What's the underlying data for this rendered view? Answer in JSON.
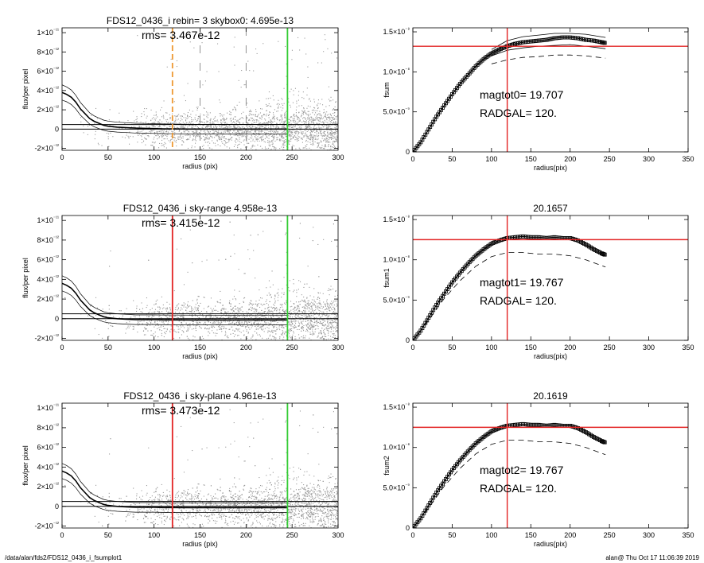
{
  "footer": {
    "path": "/data/alan/fds2/FDS12_0436_i_fsumplot1",
    "user_date": "alan@  Thu Oct 17 11:06:39 2019"
  },
  "colors": {
    "red": "#e32424",
    "green": "#33cc33",
    "orange": "#ee9933",
    "scatter": "#9a9a9a",
    "profile": "#000000"
  },
  "chart_data": [
    {
      "type": "scatter",
      "id": "profile-0",
      "title": "FDS12_0436_i rebin= 3    skybox0:  4.695e-13",
      "annotations": [
        "rms= 3.467e-12"
      ],
      "xlabel": "radius (pix)",
      "ylabel": "flux/per pixel",
      "xlim": [
        0,
        300
      ],
      "ylim": [
        -2.2e-12,
        1.05e-11
      ],
      "xticks": [
        "0",
        "50",
        "100",
        "150",
        "200",
        "250",
        "300"
      ],
      "yticks": [
        "-2×10⁻¹²",
        "0",
        "2×10⁻¹²",
        "4×10⁻¹²",
        "6×10⁻¹²",
        "8×10⁻¹²",
        "1×10⁻¹¹"
      ],
      "ytick_values": [
        -2e-12,
        0,
        2e-12,
        4e-12,
        6e-12,
        8e-12,
        1e-11
      ],
      "sky_level": 4.695e-13,
      "vlines": [
        {
          "x": 120,
          "style": "dashed",
          "color": "orange"
        },
        {
          "x": 150,
          "style": "dashed",
          "color": "gray"
        },
        {
          "x": 200,
          "style": "dashed",
          "color": "gray"
        },
        {
          "x": 245,
          "style": "solid",
          "color": "green"
        }
      ],
      "profile": {
        "x": [
          0,
          5,
          10,
          15,
          20,
          25,
          30,
          35,
          40,
          45,
          50,
          60,
          70,
          80,
          90,
          100,
          110,
          120,
          140,
          160,
          180,
          200,
          220,
          245
        ],
        "y": [
          3.8e-12,
          3.6e-12,
          3.3e-12,
          2.8e-12,
          2.1e-12,
          1.6e-12,
          1.1e-12,
          8e-13,
          6e-13,
          4e-13,
          3e-13,
          2e-13,
          1.5e-13,
          1e-13,
          8e-14,
          5e-14,
          3e-14,
          2e-14,
          0,
          0,
          -1e-14,
          0,
          0,
          0
        ]
      },
      "scatter_note": "individual pixel fluxes, dense gray cloud"
    },
    {
      "type": "line",
      "id": "fsum-0",
      "title": "",
      "annotations": [
        "magtot0=  19.707",
        "RADGAL=    120."
      ],
      "xlabel": "radius(pix)",
      "ylabel": "fsum",
      "xlim": [
        0,
        350
      ],
      "ylim": [
        0,
        1.55e-08
      ],
      "xticks": [
        "0",
        "50",
        "100",
        "150",
        "200",
        "250",
        "300",
        "350"
      ],
      "yticks": [
        "0",
        "5.0×10⁻⁹",
        "1.0×10⁻⁸",
        "1.5×10⁻⁸"
      ],
      "ytick_values": [
        0,
        5e-09,
        1e-08,
        1.5e-08
      ],
      "hline": 1.32e-08,
      "vline": 120,
      "series": [
        {
          "style": "markers",
          "x": [
            0,
            10,
            20,
            30,
            40,
            50,
            60,
            70,
            80,
            90,
            100,
            110,
            120,
            130,
            140,
            150,
            160,
            170,
            180,
            190,
            200,
            210,
            220,
            230,
            240,
            245
          ],
          "y": [
            0,
            1.2e-09,
            2.8e-09,
            4.4e-09,
            5.8e-09,
            7.2e-09,
            8.5e-09,
            9.6e-09,
            1.07e-08,
            1.16e-08,
            1.23e-08,
            1.28e-08,
            1.32e-08,
            1.35e-08,
            1.37e-08,
            1.38e-08,
            1.39e-08,
            1.4e-08,
            1.42e-08,
            1.43e-08,
            1.43e-08,
            1.42e-08,
            1.4e-08,
            1.39e-08,
            1.37e-08,
            1.36e-08
          ]
        },
        {
          "style": "thin",
          "x": [
            100,
            120,
            140,
            160,
            180,
            200,
            220,
            245
          ],
          "y": [
            1.28e-08,
            1.39e-08,
            1.44e-08,
            1.46e-08,
            1.48e-08,
            1.48e-08,
            1.47e-08,
            1.43e-08
          ]
        },
        {
          "style": "thin",
          "x": [
            100,
            120,
            140,
            160,
            180,
            200,
            220,
            245
          ],
          "y": [
            1.2e-08,
            1.27e-08,
            1.3e-08,
            1.32e-08,
            1.33e-08,
            1.34e-08,
            1.32e-08,
            1.29e-08
          ]
        },
        {
          "style": "dashed",
          "x": [
            100,
            120,
            140,
            160,
            180,
            200,
            220,
            245
          ],
          "y": [
            1.1e-08,
            1.15e-08,
            1.18e-08,
            1.19e-08,
            1.21e-08,
            1.21e-08,
            1.2e-08,
            1.17e-08
          ]
        }
      ]
    },
    {
      "type": "scatter",
      "id": "profile-1",
      "title": "FDS12_0436_i sky-range  4.958e-13",
      "annotations": [
        "rms= 3.415e-12"
      ],
      "xlabel": "radius (pix)",
      "ylabel": "flux/per pixel",
      "xlim": [
        0,
        300
      ],
      "ylim": [
        -2.2e-12,
        1.05e-11
      ],
      "xticks": [
        "0",
        "50",
        "100",
        "150",
        "200",
        "250",
        "300"
      ],
      "yticks": [
        "-2×10⁻¹²",
        "0",
        "2×10⁻¹²",
        "4×10⁻¹²",
        "6×10⁻¹²",
        "8×10⁻¹²",
        "1×10⁻¹¹"
      ],
      "ytick_values": [
        -2e-12,
        0,
        2e-12,
        4e-12,
        6e-12,
        8e-12,
        1e-11
      ],
      "sky_level": 4.958e-13,
      "vlines": [
        {
          "x": 120,
          "style": "solid",
          "color": "red"
        },
        {
          "x": 245,
          "style": "solid",
          "color": "green"
        }
      ],
      "profile": {
        "x": [
          0,
          5,
          10,
          15,
          20,
          25,
          30,
          35,
          40,
          45,
          50,
          60,
          70,
          80,
          90,
          100,
          110,
          120,
          140,
          160,
          180,
          200,
          220,
          245
        ],
        "y": [
          3.6e-12,
          3.4e-12,
          3.1e-12,
          2.6e-12,
          1.9e-12,
          1.4e-12,
          9e-13,
          6e-13,
          4e-13,
          2e-13,
          1e-13,
          0,
          -5e-14,
          -1e-13,
          -1e-13,
          -1e-13,
          -1.2e-13,
          -1.2e-13,
          -1.3e-13,
          -1.3e-13,
          -1.4e-13,
          -1.3e-13,
          -1.3e-13,
          -1.3e-13
        ]
      },
      "scatter_note": "individual pixel fluxes, dense gray cloud"
    },
    {
      "type": "line",
      "id": "fsum-1",
      "title": "20.1657",
      "annotations": [
        "magtot1=  19.767",
        "RADGAL=    120."
      ],
      "xlabel": "radius(pix)",
      "ylabel": "fsum1",
      "xlim": [
        0,
        350
      ],
      "ylim": [
        0,
        1.55e-08
      ],
      "xticks": [
        "0",
        "50",
        "100",
        "150",
        "200",
        "250",
        "300",
        "350"
      ],
      "yticks": [
        "0",
        "5.0×10⁻⁹",
        "1.0×10⁻⁸",
        "1.5×10⁻⁸"
      ],
      "ytick_values": [
        0,
        5e-09,
        1e-08,
        1.5e-08
      ],
      "hline": 1.25e-08,
      "vline": 120,
      "series": [
        {
          "style": "markers",
          "x": [
            0,
            10,
            20,
            30,
            40,
            50,
            60,
            70,
            80,
            90,
            100,
            110,
            120,
            130,
            140,
            150,
            160,
            170,
            180,
            190,
            200,
            210,
            220,
            230,
            240,
            245
          ],
          "y": [
            0,
            1.2e-09,
            2.8e-09,
            4.4e-09,
            5.8e-09,
            7.2e-09,
            8.4e-09,
            9.5e-09,
            1.05e-08,
            1.13e-08,
            1.2e-08,
            1.24e-08,
            1.27e-08,
            1.28e-08,
            1.29e-08,
            1.28e-08,
            1.28e-08,
            1.27e-08,
            1.28e-08,
            1.27e-08,
            1.27e-08,
            1.24e-08,
            1.19e-08,
            1.13e-08,
            1.08e-08,
            1.06e-08
          ]
        },
        {
          "style": "dashed",
          "x": [
            0,
            20,
            40,
            60,
            80,
            100,
            120,
            140,
            160,
            180,
            200,
            220,
            245
          ],
          "y": [
            0,
            2.5e-09,
            5.2e-09,
            7.4e-09,
            9.2e-09,
            1.04e-08,
            1.09e-08,
            1.09e-08,
            1.07e-08,
            1.07e-08,
            1.05e-08,
            1e-08,
            9.1e-09
          ]
        }
      ]
    },
    {
      "type": "scatter",
      "id": "profile-2",
      "title": "FDS12_0436_i sky-plane  4.961e-13",
      "annotations": [
        "rms= 3.473e-12"
      ],
      "xlabel": "radius (pix)",
      "ylabel": "flux/per pixel",
      "xlim": [
        0,
        300
      ],
      "ylim": [
        -2.2e-12,
        1.05e-11
      ],
      "xticks": [
        "0",
        "50",
        "100",
        "150",
        "200",
        "250",
        "300"
      ],
      "yticks": [
        "-2×10⁻¹²",
        "0",
        "2×10⁻¹²",
        "4×10⁻¹²",
        "6×10⁻¹²",
        "8×10⁻¹²",
        "1×10⁻¹¹"
      ],
      "ytick_values": [
        -2e-12,
        0,
        2e-12,
        4e-12,
        6e-12,
        8e-12,
        1e-11
      ],
      "sky_level": 4.961e-13,
      "vlines": [
        {
          "x": 120,
          "style": "solid",
          "color": "red"
        },
        {
          "x": 245,
          "style": "solid",
          "color": "green"
        }
      ],
      "profile": {
        "x": [
          0,
          5,
          10,
          15,
          20,
          25,
          30,
          35,
          40,
          45,
          50,
          60,
          70,
          80,
          90,
          100,
          110,
          120,
          140,
          160,
          180,
          200,
          220,
          245
        ],
        "y": [
          3.6e-12,
          3.4e-12,
          3.1e-12,
          2.6e-12,
          1.9e-12,
          1.4e-12,
          9e-13,
          6e-13,
          4e-13,
          2e-13,
          1e-13,
          0,
          -5e-14,
          -1e-13,
          -1e-13,
          -1e-13,
          -1.2e-13,
          -1.2e-13,
          -1.3e-13,
          -1.3e-13,
          -1.4e-13,
          -1.3e-13,
          -1.3e-13,
          -1.3e-13
        ]
      },
      "scatter_note": "individual pixel fluxes, dense gray cloud"
    },
    {
      "type": "line",
      "id": "fsum-2",
      "title": "20.1619",
      "annotations": [
        "magtot2=  19.767",
        "RADGAL=    120."
      ],
      "xlabel": "radius(pix)",
      "ylabel": "fsum2",
      "xlim": [
        0,
        350
      ],
      "ylim": [
        0,
        1.55e-08
      ],
      "xticks": [
        "0",
        "50",
        "100",
        "150",
        "200",
        "250",
        "300",
        "350"
      ],
      "yticks": [
        "0",
        "5.0×10⁻⁹",
        "1.0×10⁻⁸",
        "1.5×10⁻⁸"
      ],
      "ytick_values": [
        0,
        5e-09,
        1e-08,
        1.5e-08
      ],
      "hline": 1.25e-08,
      "vline": 120,
      "series": [
        {
          "style": "markers",
          "x": [
            0,
            10,
            20,
            30,
            40,
            50,
            60,
            70,
            80,
            90,
            100,
            110,
            120,
            130,
            140,
            150,
            160,
            170,
            180,
            190,
            200,
            210,
            220,
            230,
            240,
            245
          ],
          "y": [
            0,
            1.2e-09,
            2.8e-09,
            4.4e-09,
            5.8e-09,
            7.2e-09,
            8.4e-09,
            9.5e-09,
            1.05e-08,
            1.13e-08,
            1.2e-08,
            1.24e-08,
            1.27e-08,
            1.28e-08,
            1.29e-08,
            1.28e-08,
            1.28e-08,
            1.27e-08,
            1.28e-08,
            1.27e-08,
            1.27e-08,
            1.24e-08,
            1.19e-08,
            1.13e-08,
            1.08e-08,
            1.06e-08
          ]
        },
        {
          "style": "dashed",
          "x": [
            0,
            20,
            40,
            60,
            80,
            100,
            120,
            140,
            160,
            180,
            200,
            220,
            245
          ],
          "y": [
            0,
            2.5e-09,
            5.2e-09,
            7.4e-09,
            9.2e-09,
            1.04e-08,
            1.09e-08,
            1.09e-08,
            1.07e-08,
            1.07e-08,
            1.05e-08,
            1e-08,
            9.1e-09
          ]
        }
      ]
    }
  ]
}
